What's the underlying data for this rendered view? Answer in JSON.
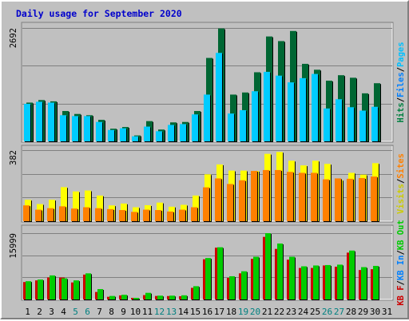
{
  "chart_data": {
    "type": "bar",
    "title": "Daily usage for September 2020",
    "categories": [
      "1",
      "2",
      "3",
      "4",
      "5",
      "6",
      "7",
      "8",
      "9",
      "10",
      "11",
      "12",
      "13",
      "14",
      "15",
      "16",
      "17",
      "18",
      "19",
      "20",
      "21",
      "22",
      "23",
      "24",
      "25",
      "26",
      "27",
      "28",
      "29",
      "30",
      "31"
    ],
    "weekend_days": [
      "5",
      "6",
      "12",
      "13",
      "19",
      "20",
      "26",
      "27"
    ],
    "panels": [
      {
        "max_label": "2692",
        "ymax": 2692,
        "legend": [
          {
            "text": "Hits",
            "color": "#008040"
          },
          {
            "text": "Files",
            "color": "#0080ff"
          },
          {
            "text": "Pages",
            "color": "#00c0ff"
          }
        ],
        "series": [
          {
            "name": "Hits",
            "color": "#006633",
            "values": [
              920,
              980,
              950,
              720,
              650,
              620,
              510,
              300,
              340,
              140,
              480,
              280,
              450,
              460,
              720,
              1980,
              2680,
              1110,
              1160,
              1640,
              2490,
              2380,
              2620,
              1840,
              1700,
              1440,
              1570,
              1510,
              1140,
              1380,
              0
            ]
          },
          {
            "name": "Files",
            "color": "#00ccff",
            "values": [
              890,
              940,
              920,
              620,
              600,
              600,
              460,
              270,
              310,
              120,
              350,
              240,
              390,
              410,
              640,
              1110,
              2100,
              660,
              740,
              1190,
              1650,
              1560,
              1400,
              1500,
              1600,
              780,
              1000,
              810,
              730,
              820,
              0
            ]
          },
          {
            "name": "Pages",
            "color": "#00ccff",
            "values": [
              0,
              0,
              0,
              0,
              0,
              0,
              0,
              0,
              0,
              0,
              0,
              0,
              0,
              0,
              0,
              0,
              0,
              0,
              0,
              0,
              0,
              0,
              0,
              0,
              0,
              0,
              0,
              0,
              0,
              0,
              0
            ]
          }
        ]
      },
      {
        "max_label": "382",
        "ymax": 382,
        "legend": [
          {
            "text": "Visits",
            "color": "#cccc00"
          },
          {
            "text": "Sites",
            "color": "#ff8000"
          }
        ],
        "series": [
          {
            "name": "Visits",
            "color": "#ffff00",
            "values": [
              115,
              92,
              115,
              183,
              160,
              165,
              138,
              85,
              95,
              75,
              86,
              100,
              78,
              88,
              138,
              252,
              305,
              272,
              272,
              270,
              362,
              372,
              325,
              300,
              325,
              308,
              222,
              260,
              250,
              312,
              0
            ]
          },
          {
            "name": "Sites",
            "color": "#ff8000",
            "values": [
              85,
              62,
              70,
              80,
              68,
              75,
              70,
              65,
              60,
              50,
              62,
              60,
              52,
              62,
              75,
              182,
              230,
              200,
              220,
              270,
              275,
              275,
              265,
              260,
              260,
              225,
              230,
              228,
              232,
              240,
              0
            ]
          }
        ]
      },
      {
        "max_label": "15999",
        "ymax": 15999,
        "legend": [
          {
            "text": "KB F",
            "color": "#cc0000"
          },
          {
            "text": "KB In",
            "color": "#0080ff"
          },
          {
            "text": "KB Out",
            "color": "#00cc00"
          }
        ],
        "series": [
          {
            "name": "KB F",
            "color": "#cc0000",
            "values": [
              4200,
              4600,
              5300,
              5300,
              4100,
              6000,
              1800,
              640,
              980,
              380,
              1050,
              840,
              820,
              780,
              2800,
              9700,
              12500,
              5200,
              6300,
              9800,
              15100,
              12200,
              9600,
              7600,
              7600,
              8200,
              7900,
              11300,
              7100,
              7300,
              0
            ]
          },
          {
            "name": "KB Out",
            "color": "#00cc00",
            "values": [
              4400,
              4800,
              5800,
              5100,
              4600,
              6300,
              2500,
              840,
              1120,
              380,
              1600,
              920,
              920,
              1000,
              3200,
              10000,
              12600,
              5600,
              6800,
              10300,
              16000,
              13500,
              10300,
              8000,
              8200,
              8300,
              8400,
              11800,
              7800,
              8100,
              0
            ]
          }
        ]
      }
    ]
  }
}
